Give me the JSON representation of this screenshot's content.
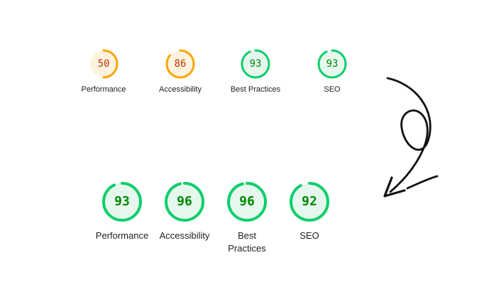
{
  "before": {
    "gauges": [
      {
        "score": "50",
        "label": "Performance",
        "value": 0.5,
        "color": "#ffa400",
        "fill": "#fff3e0",
        "text_color": "#c33300"
      },
      {
        "score": "86",
        "label": "Accessibility",
        "value": 0.86,
        "color": "#ffa400",
        "fill": "#fff3e0",
        "text_color": "#c33300"
      },
      {
        "score": "93",
        "label": "Best Practices",
        "value": 0.93,
        "color": "#0cce6b",
        "fill": "#e6f7ee",
        "text_color": "#008800"
      },
      {
        "score": "93",
        "label": "SEO",
        "value": 0.93,
        "color": "#0cce6b",
        "fill": "#e6f7ee",
        "text_color": "#008800"
      }
    ]
  },
  "after": {
    "gauges": [
      {
        "score": "93",
        "label": "Performance",
        "value": 0.93,
        "color": "#0cce6b",
        "fill": "#e6f7ee",
        "text_color": "#008800"
      },
      {
        "score": "96",
        "label": "Accessibility",
        "value": 0.96,
        "color": "#0cce6b",
        "fill": "#e6f7ee",
        "text_color": "#008800"
      },
      {
        "score": "96",
        "label": "Best\nPractices",
        "value": 0.96,
        "color": "#0cce6b",
        "fill": "#e6f7ee",
        "text_color": "#008800"
      },
      {
        "score": "92",
        "label": "SEO",
        "value": 0.92,
        "color": "#0cce6b",
        "fill": "#e6f7ee",
        "text_color": "#008800"
      }
    ]
  },
  "arrow_icon": "curly-arrow-icon"
}
